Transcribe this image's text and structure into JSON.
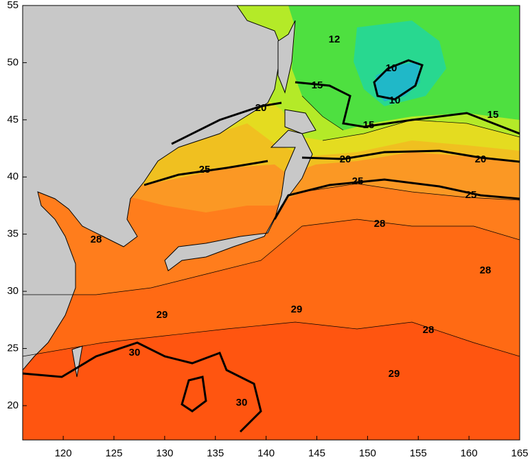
{
  "map": {
    "xlim": [
      116,
      165
    ],
    "ylim": [
      17,
      55
    ],
    "xticks": [
      120,
      125,
      130,
      135,
      140,
      145,
      150,
      155,
      160,
      165
    ],
    "yticks": [
      20,
      25,
      30,
      35,
      40,
      45,
      50,
      55
    ],
    "contour_labels": [
      12,
      10,
      10,
      15,
      15,
      15,
      20,
      20,
      20,
      25,
      25,
      25,
      28,
      28,
      28,
      28,
      29,
      29,
      29,
      30,
      30
    ]
  }
}
